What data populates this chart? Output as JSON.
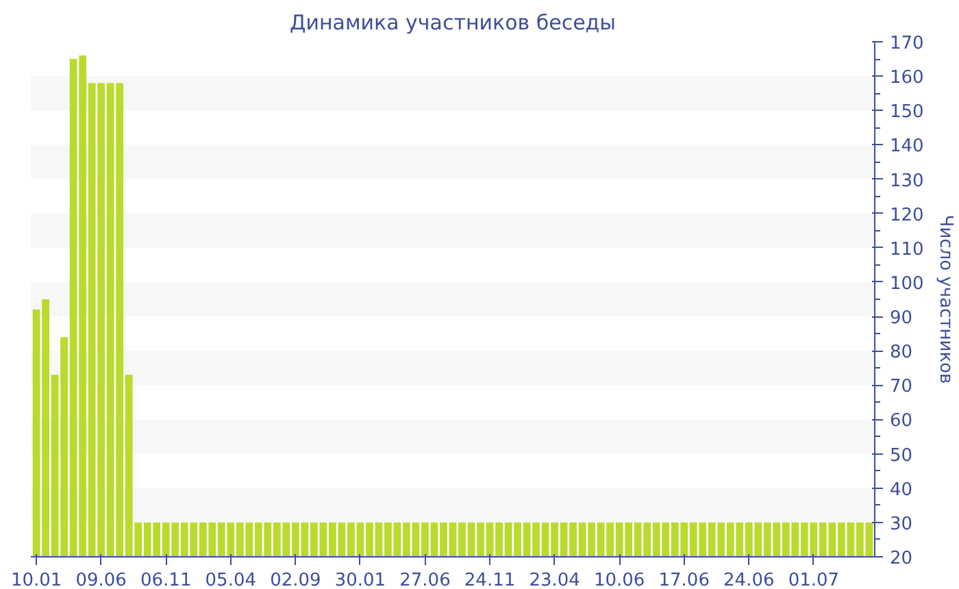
{
  "chart_data": {
    "type": "bar",
    "title": "Динамика участников беседы",
    "ylabel": "Число участников",
    "categories": [
      "10.01",
      null,
      null,
      null,
      null,
      null,
      null,
      "09.06",
      null,
      null,
      null,
      null,
      null,
      null,
      "06.11",
      null,
      null,
      null,
      null,
      null,
      null,
      "05.04",
      null,
      null,
      null,
      null,
      null,
      null,
      "02.09",
      null,
      null,
      null,
      null,
      null,
      null,
      "30.01",
      null,
      null,
      null,
      null,
      null,
      null,
      "27.06",
      null,
      null,
      null,
      null,
      null,
      null,
      "24.11",
      null,
      null,
      null,
      null,
      null,
      null,
      "23.04",
      null,
      null,
      null,
      null,
      null,
      null,
      "10.06",
      null,
      null,
      null,
      null,
      null,
      null,
      "17.06",
      null,
      null,
      null,
      null,
      null,
      null,
      "24.06",
      null,
      null,
      null,
      null,
      null,
      null,
      "01.07",
      null,
      null,
      null,
      null,
      null,
      null
    ],
    "values": [
      92,
      95,
      73,
      84,
      165,
      166,
      158,
      158,
      158,
      158,
      73,
      30,
      30,
      30,
      30,
      30,
      30,
      30,
      30,
      30,
      30,
      30,
      30,
      30,
      30,
      30,
      30,
      30,
      30,
      30,
      30,
      30,
      30,
      30,
      30,
      30,
      30,
      30,
      30,
      30,
      30,
      30,
      30,
      30,
      30,
      30,
      30,
      30,
      30,
      30,
      30,
      30,
      30,
      30,
      30,
      30,
      30,
      30,
      30,
      30,
      30,
      30,
      30,
      30,
      30,
      30,
      30,
      30,
      30,
      30,
      30,
      30,
      30,
      30,
      30,
      30,
      30,
      30,
      30,
      30,
      30,
      30,
      30,
      30,
      30,
      30,
      30,
      30,
      30,
      30,
      30
    ],
    "color": "#bada2e",
    "ylim": [
      20,
      170
    ],
    "yticks": [
      20,
      30,
      40,
      50,
      60,
      70,
      80,
      90,
      100,
      110,
      120,
      130,
      140,
      150,
      160,
      170
    ],
    "bands": [
      {
        "axis": "y",
        "from": 30,
        "to": 40,
        "color": "#f7f7f7"
      },
      {
        "axis": "y",
        "from": 50,
        "to": 60,
        "color": "#f7f7f7"
      },
      {
        "axis": "y",
        "from": 70,
        "to": 80,
        "color": "#f7f7f7"
      },
      {
        "axis": "y",
        "from": 90,
        "to": 100,
        "color": "#f7f7f7"
      },
      {
        "axis": "y",
        "from": 110,
        "to": 120,
        "color": "#f7f7f7"
      },
      {
        "axis": "y",
        "from": 130,
        "to": 140,
        "color": "#f7f7f7"
      },
      {
        "axis": "y",
        "from": 150,
        "to": 160,
        "color": "#f7f7f7"
      }
    ]
  }
}
